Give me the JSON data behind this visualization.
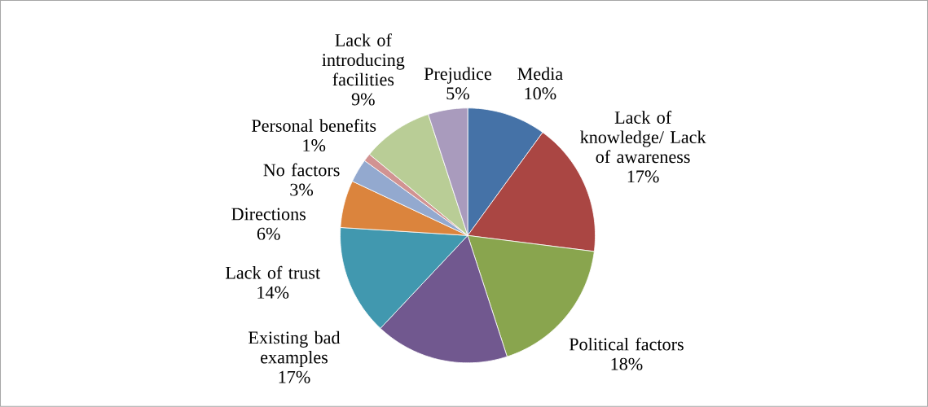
{
  "chart_data": {
    "type": "pie",
    "categories": [
      "Media",
      "Lack of knowledge/ Lack of awareness",
      "Political factors",
      "Existing bad examples",
      "Lack of trust",
      "Directions",
      "No factors",
      "Personal benefits",
      "Lack of introducing facilities",
      "Prejudice"
    ],
    "values": [
      10,
      17,
      18,
      17,
      14,
      6,
      3,
      1,
      9,
      5
    ],
    "value_labels": [
      "10%",
      "17%",
      "18%",
      "17%",
      "14%",
      "6%",
      "3%",
      "1%",
      "9%",
      "5%"
    ],
    "colors": [
      "#4572a7",
      "#aa4643",
      "#89a54e",
      "#71588f",
      "#4198af",
      "#db843d",
      "#93a9cf",
      "#d19392",
      "#b9cd96",
      "#a99bbd"
    ]
  }
}
